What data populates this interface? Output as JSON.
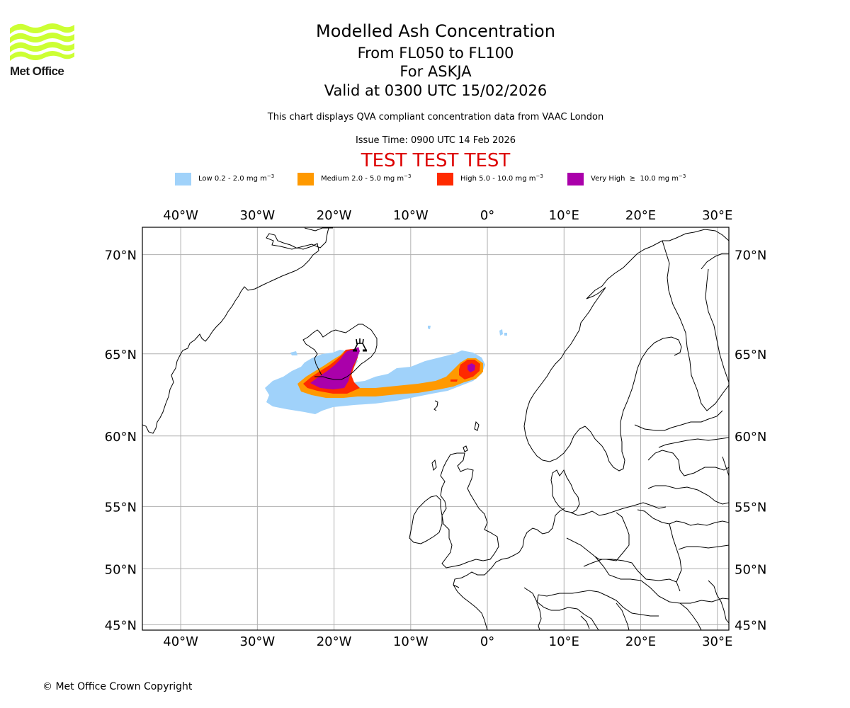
{
  "branding": {
    "logo_text": "Met Office",
    "logo_icon": "met-office-wave-logo-icon",
    "logo_color": "#ccff33"
  },
  "header": {
    "title": "Modelled Ash Concentration",
    "flight_levels": "From FL050 to FL100",
    "volcano": "For ASKJA",
    "valid_time": "Valid at 0300 UTC 15/02/2026",
    "description": "This chart displays QVA compliant concentration data from VAAC London",
    "issue_time": "Issue Time: 0900 UTC 14 Feb 2026",
    "test_banner": "TEST TEST TEST",
    "test_banner_color": "#dd0000"
  },
  "legend": [
    {
      "level": "Low",
      "range": "0.2 - 2.0",
      "unit": "mg m",
      "exp": "−3",
      "label": "Low 0.2 - 2.0 mg m",
      "color": "#a0d2fa"
    },
    {
      "level": "Medium",
      "range": "2.0 - 5.0",
      "unit": "mg m",
      "exp": "−3",
      "label": "Medium 2.0 - 5.0 mg m",
      "color": "#ff9900"
    },
    {
      "level": "High",
      "range": "5.0 - 10.0",
      "unit": "mg m",
      "exp": "−3",
      "label": "High 5.0 - 10.0 mg m",
      "color": "#ff2a00"
    },
    {
      "level": "Very High",
      "range": "≥ 10.0",
      "unit": "mg m",
      "exp": "−3",
      "label": "Very High  ≥  10.0 mg m",
      "color": "#aa00aa"
    }
  ],
  "map": {
    "projection": "Mercator",
    "extent": {
      "lon_min": -45,
      "lon_max": 31.5,
      "lat_min": 44.5,
      "lat_max": 71.2
    },
    "lon_ticks": [
      {
        "value": -40,
        "label": "40°W"
      },
      {
        "value": -30,
        "label": "30°W"
      },
      {
        "value": -20,
        "label": "20°W"
      },
      {
        "value": -10,
        "label": "10°W"
      },
      {
        "value": 0,
        "label": "0°"
      },
      {
        "value": 10,
        "label": "10°E"
      },
      {
        "value": 20,
        "label": "20°E"
      },
      {
        "value": 30,
        "label": "30°E"
      }
    ],
    "lat_ticks": [
      {
        "value": 70,
        "label": "70°N"
      },
      {
        "value": 65,
        "label": "65°N"
      },
      {
        "value": 60,
        "label": "60°N"
      },
      {
        "value": 55,
        "label": "55°N"
      },
      {
        "value": 50,
        "label": "50°N"
      },
      {
        "value": 45,
        "label": "45°N"
      }
    ],
    "volcano_marker": {
      "name": "ASKJA",
      "lon": -16.75,
      "lat": 65.03,
      "icon": "volcano-icon"
    },
    "gridline_color": "#b0b0b0",
    "coastline_color": "#000000"
  },
  "footer": {
    "copyright": "© Met Office Crown Copyright"
  }
}
